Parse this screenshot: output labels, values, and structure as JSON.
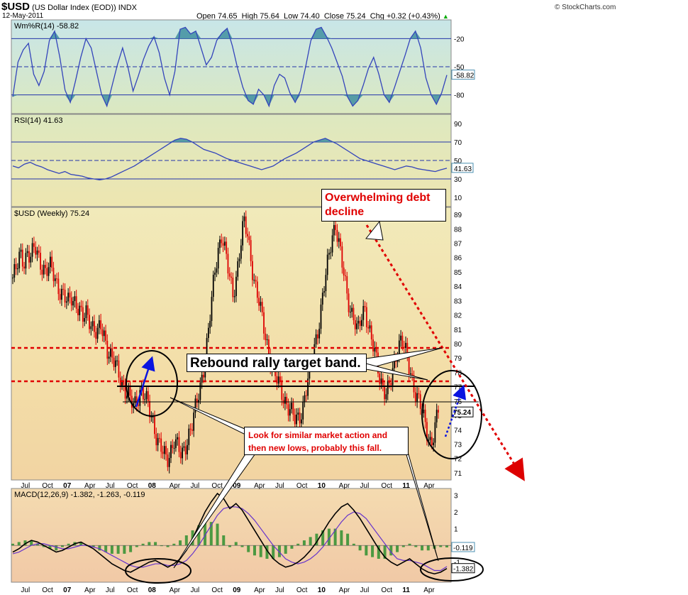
{
  "header": {
    "symbol": "$USD",
    "name": "(US Dollar Index (EOD))",
    "exchange": "INDX",
    "date": "12-May-2011",
    "open": "Open 74.65",
    "high": "High 75.64",
    "low": "Low 74.40",
    "close": "Close 75.24",
    "chg": "Chg +0.32 (+0.43%)",
    "chg_arrow": "▲",
    "watermark": "© StockCharts.com"
  },
  "annotations": {
    "debt": [
      "Overwhelming debt",
      "decline"
    ],
    "band": "Rebound rally target band.",
    "look": [
      "Look for similar market action and",
      "then new lows, probably this fall."
    ]
  },
  "colors": {
    "up": "#000000",
    "down": "#dd0000",
    "indicator_line": "#3344bb",
    "wmr_fill": "#3f8ea0",
    "macd_hist": "#2f8f2f",
    "signal": "#6633cc",
    "annotation_red": "#dd0000"
  },
  "chart_data": [
    {
      "type": "line",
      "title": "Wm%R(14) -58.82",
      "last_value": "-58.82",
      "ylim": [
        -100,
        0
      ],
      "ticks": [
        "-20",
        "-50",
        "-80"
      ],
      "levels": [
        -20,
        -50,
        -80
      ],
      "values": [
        -82,
        -45,
        -32,
        -25,
        -58,
        -70,
        -55,
        -22,
        -12,
        -40,
        -75,
        -88,
        -65,
        -40,
        -20,
        -30,
        -55,
        -80,
        -92,
        -70,
        -48,
        -30,
        -50,
        -76,
        -60,
        -42,
        -28,
        -18,
        -35,
        -62,
        -80,
        -55,
        -10,
        -8,
        -15,
        -12,
        -30,
        -48,
        -40,
        -22,
        -14,
        -9,
        -28,
        -52,
        -72,
        -86,
        -90,
        -74,
        -80,
        -92,
        -70,
        -58,
        -62,
        -78,
        -88,
        -76,
        -50,
        -22,
        -10,
        -8,
        -18,
        -30,
        -45,
        -60,
        -82,
        -92,
        -86,
        -70,
        -52,
        -40,
        -58,
        -80,
        -88,
        -72,
        -55,
        -38,
        -20,
        -12,
        -30,
        -62,
        -80,
        -90,
        -78,
        -58.82
      ]
    },
    {
      "type": "line",
      "title": "RSI(14) 41.63",
      "last_value": "41.63",
      "ylim": [
        0,
        100
      ],
      "ticks": [
        "90",
        "70",
        "50",
        "30",
        "10"
      ],
      "levels": [
        70,
        50,
        30
      ],
      "values": [
        44,
        42,
        46,
        48,
        45,
        43,
        40,
        38,
        36,
        38,
        35,
        34,
        33,
        31,
        30,
        29,
        30,
        32,
        35,
        38,
        41,
        44,
        48,
        52,
        56,
        60,
        64,
        68,
        72,
        74,
        73,
        70,
        66,
        62,
        60,
        58,
        55,
        52,
        50,
        48,
        46,
        44,
        42,
        40,
        42,
        44,
        48,
        52,
        55,
        58,
        62,
        66,
        70,
        72,
        74,
        71,
        68,
        64,
        60,
        56,
        52,
        50,
        48,
        46,
        44,
        42,
        40,
        42,
        44,
        43,
        41,
        40,
        39,
        38,
        40,
        41.63
      ]
    },
    {
      "type": "candlestick",
      "title": "$USD (Weekly) 75.24",
      "last_value": "75.24",
      "ylim": [
        70.5,
        89.5
      ],
      "y_ticks": [
        "71",
        "72",
        "73",
        "74",
        "75",
        "76",
        "77",
        "78",
        "79",
        "80",
        "81",
        "82",
        "83",
        "84",
        "85",
        "86",
        "87",
        "88",
        "89"
      ],
      "x_ticks": [
        "Jul",
        "Oct",
        "07",
        "Apr",
        "Jul",
        "Oct",
        "08",
        "Apr",
        "Jul",
        "Oct",
        "09",
        "Apr",
        "Jul",
        "Oct",
        "10",
        "Apr",
        "Jul",
        "Oct",
        "11",
        "Apr"
      ],
      "x_tick_index": [
        8,
        21,
        34,
        47,
        60,
        73,
        86,
        99,
        112,
        125,
        138,
        151,
        164,
        177,
        190,
        203,
        216,
        229,
        242,
        255
      ],
      "close_path": [
        84.6,
        85.1,
        86.2,
        85.8,
        86.4,
        85.9,
        86.7,
        86.1,
        85.5,
        84.9,
        85.3,
        85.0,
        84.3,
        83.6,
        83.1,
        82.8,
        83.4,
        83.0,
        82.3,
        81.6,
        82.2,
        81.8,
        81.0,
        80.5,
        81.2,
        80.6,
        79.5,
        78.9,
        78.4,
        77.9,
        77.2,
        76.6,
        76.0,
        75.6,
        76.3,
        76.9,
        76.2,
        75.5,
        74.8,
        73.8,
        72.9,
        72.3,
        71.8,
        72.6,
        73.4,
        72.7,
        72.0,
        72.9,
        73.8,
        74.5,
        75.6,
        76.8,
        78.4,
        80.2,
        82.4,
        84.8,
        86.6,
        87.8,
        86.2,
        84.6,
        83.4,
        84.9,
        86.8,
        88.4,
        87.5,
        85.8,
        84.2,
        83.0,
        81.6,
        80.4,
        79.2,
        78.1,
        77.4,
        76.8,
        76.2,
        75.7,
        75.1,
        74.6,
        74.9,
        75.6,
        76.8,
        78.2,
        79.6,
        80.8,
        82.4,
        84.1,
        85.8,
        87.6,
        88.4,
        86.7,
        85.1,
        83.6,
        82.5,
        81.8,
        80.6,
        81.8,
        82.6,
        81.2,
        80.0,
        78.8,
        77.7,
        77.0,
        76.6,
        77.2,
        78.5,
        79.9,
        80.6,
        79.4,
        78.2,
        77.3,
        76.6,
        75.9,
        74.6,
        73.6,
        73.1,
        74.2,
        75.3
      ]
    },
    {
      "type": "line",
      "title": "MACD(12,26,9) -1.382, -1.263, -0.119",
      "macd_value": "-1.382",
      "signal_value": "-1.263",
      "hist_value": "-0.119",
      "ylim": [
        -2.2,
        3.4
      ],
      "ticks": [
        "3",
        "2",
        "1",
        "0",
        "-1"
      ],
      "tick_values": [
        3,
        2,
        1,
        0,
        -1
      ],
      "macd": [
        -0.4,
        -0.2,
        0.1,
        0.3,
        0.2,
        0.0,
        -0.2,
        -0.4,
        -0.3,
        -0.1,
        0.1,
        0.2,
        0.0,
        -0.2,
        -0.5,
        -0.8,
        -1.1,
        -1.3,
        -1.5,
        -1.6,
        -1.4,
        -1.2,
        -1.0,
        -0.9,
        -1.1,
        -1.3,
        -1.1,
        -0.8,
        -0.3,
        0.4,
        1.2,
        2.0,
        2.6,
        3.1,
        2.8,
        2.2,
        2.5,
        2.1,
        1.5,
        0.9,
        0.3,
        -0.3,
        -0.8,
        -1.1,
        -1.3,
        -1.2,
        -1.0,
        -0.7,
        -0.3,
        0.2,
        0.8,
        1.4,
        1.9,
        2.3,
        2.5,
        2.1,
        1.6,
        1.0,
        0.4,
        -0.2,
        -0.7,
        -1.0,
        -1.2,
        -1.0,
        -0.8,
        -1.1,
        -1.4,
        -1.6,
        -1.7,
        -1.6,
        -1.382
      ],
      "signal": [
        -0.5,
        -0.4,
        -0.2,
        0.0,
        0.1,
        0.1,
        0.0,
        -0.1,
        -0.2,
        -0.2,
        -0.1,
        0.0,
        0.0,
        -0.1,
        -0.2,
        -0.4,
        -0.6,
        -0.8,
        -1.0,
        -1.2,
        -1.3,
        -1.3,
        -1.2,
        -1.1,
        -1.1,
        -1.2,
        -1.2,
        -1.1,
        -0.9,
        -0.5,
        0.0,
        0.6,
        1.2,
        1.8,
        2.2,
        2.3,
        2.3,
        2.2,
        1.9,
        1.5,
        1.0,
        0.5,
        0.0,
        -0.4,
        -0.8,
        -1.0,
        -1.1,
        -1.0,
        -0.8,
        -0.5,
        -0.1,
        0.4,
        0.9,
        1.4,
        1.8,
        2.0,
        1.9,
        1.6,
        1.1,
        0.6,
        0.1,
        -0.4,
        -0.8,
        -0.9,
        -0.9,
        -1.0,
        -1.1,
        -1.3,
        -1.5,
        -1.5,
        -1.263
      ]
    }
  ]
}
